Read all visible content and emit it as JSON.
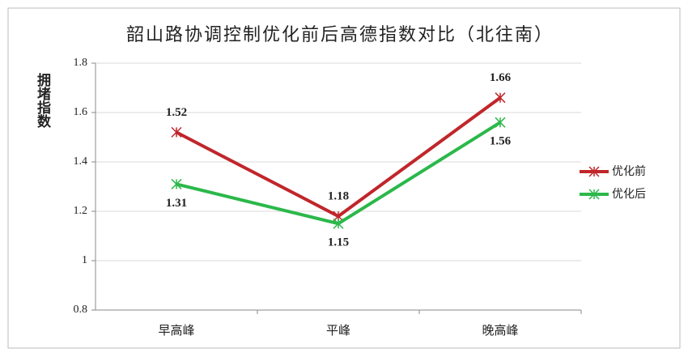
{
  "chart_data": {
    "type": "line",
    "title": "韶山路协调控制优化前后高德指数对比（北往南）",
    "y_label": "拥堵指数",
    "categories": [
      "早高峰",
      "平峰",
      "晚高峰"
    ],
    "series": [
      {
        "name": "优化前",
        "color": "#c0262b",
        "values": [
          1.52,
          1.18,
          1.66
        ]
      },
      {
        "name": "优化后",
        "color": "#2bb84a",
        "values": [
          1.31,
          1.15,
          1.56
        ]
      }
    ],
    "ylim": [
      0.8,
      1.8
    ],
    "yticks": [
      0.8,
      1,
      1.2,
      1.4,
      1.6,
      1.8
    ],
    "grid": true,
    "legend": "right"
  }
}
